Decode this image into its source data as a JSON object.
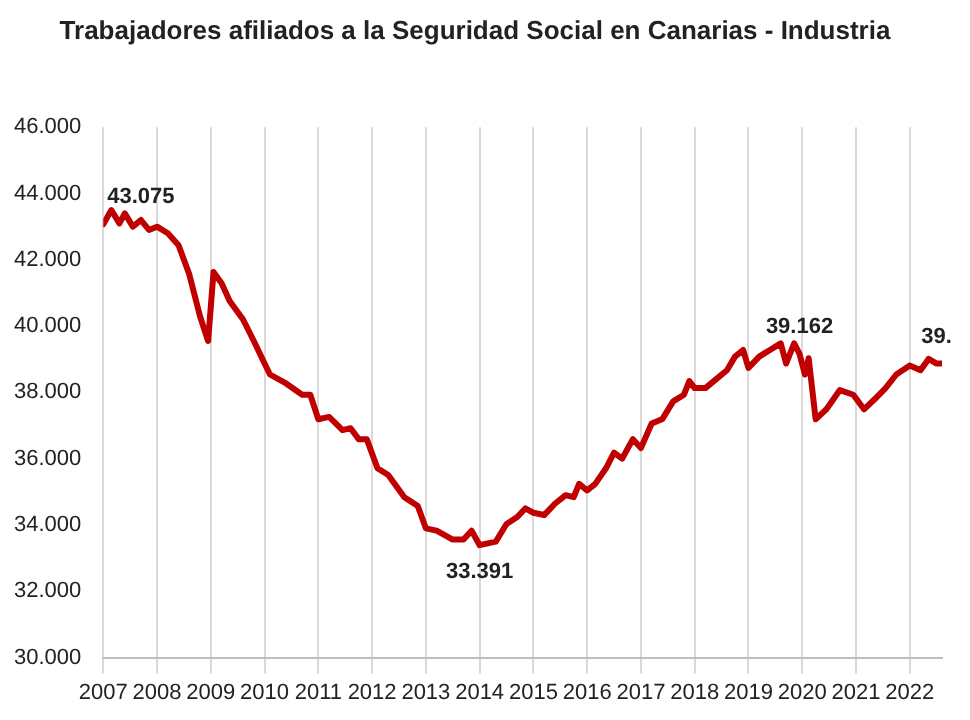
{
  "chart_data": {
    "type": "line",
    "title": "Trabajadores afiliados a la Seguridad Social en Canarias - Industria",
    "x": [
      2007.0,
      2007.15,
      2007.3,
      2007.4,
      2007.55,
      2007.7,
      2007.85,
      2008.0,
      2008.2,
      2008.4,
      2008.6,
      2008.8,
      2008.95,
      2009.05,
      2009.2,
      2009.35,
      2009.6,
      2009.8,
      2010.0,
      2010.1,
      2010.4,
      2010.7,
      2010.85,
      2011.0,
      2011.2,
      2011.45,
      2011.6,
      2011.75,
      2011.9,
      2012.1,
      2012.3,
      2012.6,
      2012.85,
      2013.0,
      2013.2,
      2013.5,
      2013.7,
      2013.85,
      2014.0,
      2014.3,
      2014.5,
      2014.7,
      2014.85,
      2015.0,
      2015.2,
      2015.4,
      2015.6,
      2015.75,
      2015.85,
      2016.0,
      2016.15,
      2016.35,
      2016.5,
      2016.65,
      2016.85,
      2017.0,
      2017.2,
      2017.4,
      2017.6,
      2017.8,
      2017.9,
      2018.0,
      2018.2,
      2018.4,
      2018.6,
      2018.75,
      2018.9,
      2019.0,
      2019.2,
      2019.4,
      2019.6,
      2019.7,
      2019.85,
      2019.95,
      2020.05,
      2020.12,
      2020.25,
      2020.45,
      2020.7,
      2020.95,
      2021.15,
      2021.35,
      2021.55,
      2021.75,
      2022.0,
      2022.2,
      2022.35,
      2022.5,
      2022.6
    ],
    "series": [
      {
        "color": "#c00000",
        "values": [
          43075,
          43500,
          43100,
          43400,
          43000,
          43200,
          42900,
          43000,
          42800,
          42440,
          41560,
          40290,
          39550,
          41630,
          41290,
          40760,
          40200,
          39550,
          38870,
          38540,
          38270,
          37930,
          37930,
          37190,
          37260,
          36860,
          36920,
          36590,
          36590,
          35710,
          35510,
          34840,
          34570,
          33900,
          33830,
          33560,
          33560,
          33830,
          33391,
          33500,
          34030,
          34240,
          34500,
          34370,
          34300,
          34640,
          34900,
          34840,
          35240,
          35040,
          35240,
          35710,
          36180,
          36000,
          36590,
          36320,
          37060,
          37200,
          37730,
          37930,
          38340,
          38130,
          38130,
          38400,
          38670,
          39080,
          39280,
          38740,
          39080,
          39280,
          39480,
          38870,
          39480,
          39162,
          38540,
          39030,
          37190,
          37490,
          38070,
          37930,
          37490,
          37800,
          38130,
          38540,
          38810,
          38670,
          39010,
          38870,
          38870
        ]
      }
    ],
    "xlim": [
      2007,
      2022.6
    ],
    "xticks": [
      2007,
      2008,
      2009,
      2010,
      2011,
      2012,
      2013,
      2014,
      2015,
      2016,
      2017,
      2018,
      2019,
      2020,
      2021,
      2022
    ],
    "ylim": [
      30000,
      46000
    ],
    "yticks": [
      {
        "value": 30000,
        "label": "30.000"
      },
      {
        "value": 32000,
        "label": "32.000"
      },
      {
        "value": 34000,
        "label": "34.000"
      },
      {
        "value": 36000,
        "label": "36.000"
      },
      {
        "value": 38000,
        "label": "38.000"
      },
      {
        "value": 40000,
        "label": "40.000"
      },
      {
        "value": 42000,
        "label": "42.000"
      },
      {
        "value": 44000,
        "label": "44.000"
      },
      {
        "value": 46000,
        "label": "46.000"
      }
    ],
    "grid": "x",
    "legend": false,
    "marker": "none",
    "line_style": "solid",
    "annotations": [
      {
        "text": "43.075",
        "x": 2007.0,
        "y": 43075
      },
      {
        "text": "33.391",
        "x": 2014.0,
        "y": 33391
      },
      {
        "text": "39.162",
        "x": 2019.95,
        "y": 39162
      },
      {
        "text": "39.",
        "x": 2022.5,
        "y": 38870
      }
    ]
  }
}
